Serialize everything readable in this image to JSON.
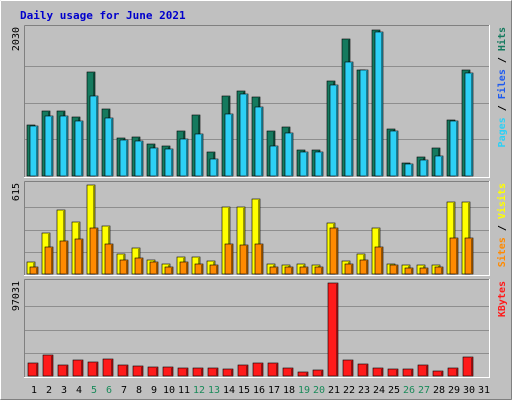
{
  "chart_data": {
    "type": "bar",
    "title": "Daily usage for June 2021",
    "categories": [
      "1",
      "2",
      "3",
      "4",
      "5",
      "6",
      "7",
      "8",
      "9",
      "10",
      "11",
      "12",
      "13",
      "14",
      "15",
      "16",
      "17",
      "18",
      "19",
      "20",
      "21",
      "22",
      "23",
      "24",
      "25",
      "26",
      "27",
      "28",
      "29",
      "30",
      "31"
    ],
    "weekend_days": [
      5,
      6,
      12,
      13,
      19,
      20,
      26,
      27
    ],
    "panels": [
      {
        "id": "hits_files_pages",
        "ymax_label": "2030",
        "ymax": 2030,
        "series": [
          {
            "name": "Hits",
            "color": "#157a5e",
            "values": [
              700,
              900,
              900,
              820,
              1440,
              920,
              520,
              540,
              440,
              420,
              620,
              840,
              330,
              1110,
              1180,
              1090,
              620,
              670,
              360,
              360,
              1310,
              1890,
              1470,
              2010,
              650,
              180,
              260,
              390,
              780,
              1460,
              0
            ]
          },
          {
            "name": "Files",
            "color": "#1e5bf0",
            "values": [
              0,
              0,
              0,
              0,
              0,
              0,
              0,
              0,
              0,
              0,
              0,
              0,
              0,
              0,
              0,
              0,
              0,
              0,
              0,
              0,
              0,
              0,
              0,
              0,
              0,
              0,
              0,
              0,
              0,
              0,
              0
            ]
          },
          {
            "name": "Pages",
            "color": "#2dd0f5",
            "values": [
              690,
              830,
              830,
              760,
              1100,
              800,
              500,
              490,
              390,
              370,
              510,
              580,
              230,
              850,
              1130,
              950,
              410,
              600,
              330,
              330,
              1260,
              1580,
              1460,
              1990,
              620,
              160,
              220,
              270,
              760,
              1420,
              0
            ]
          }
        ],
        "legend": [
          "Pages",
          " / ",
          "Files",
          " / ",
          "Hits"
        ]
      },
      {
        "id": "visits_sites",
        "ymax_label": "615",
        "ymax": 615,
        "series": [
          {
            "name": "Visits",
            "color": "#ffff00",
            "values": [
              80,
              280,
              440,
              360,
              615,
              330,
              140,
              180,
              100,
              70,
              120,
              120,
              90,
              460,
              460,
              520,
              70,
              60,
              70,
              60,
              350,
              90,
              140,
              320,
              70,
              60,
              60,
              60,
              500,
              500,
              0
            ]
          },
          {
            "name": "Sites",
            "color": "#ff8a00",
            "values": [
              50,
              190,
              230,
              240,
              320,
              210,
              100,
              110,
              80,
              50,
              80,
              70,
              60,
              210,
              200,
              210,
              50,
              50,
              50,
              50,
              320,
              70,
              100,
              190,
              60,
              40,
              40,
              50,
              250,
              250,
              0
            ]
          }
        ],
        "legend": [
          "Sites",
          " / ",
          "Visits"
        ]
      },
      {
        "id": "kbytes",
        "ymax_label": "97031",
        "ymax": 97031,
        "series": [
          {
            "name": "KBytes",
            "color": "#ff1a1a",
            "values": [
              14000,
              22000,
              11000,
              17000,
              14500,
              17500,
              11000,
              10500,
              9000,
              9000,
              8000,
              8000,
              8000,
              7500,
              11000,
              14000,
              13500,
              8500,
              4000,
              6000,
              97031,
              17000,
              12000,
              8500,
              7500,
              7500,
              11000,
              5500,
              8000,
              19500,
              0
            ]
          }
        ],
        "legend": [
          "KBytes"
        ]
      }
    ]
  }
}
